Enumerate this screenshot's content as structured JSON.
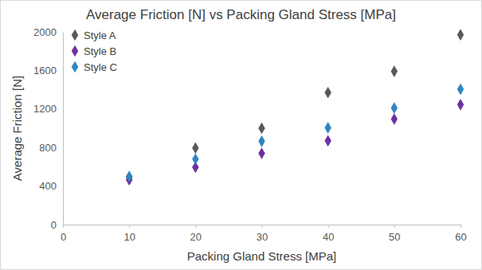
{
  "chart_data": {
    "type": "scatter",
    "title": "Average Friction [N] vs Packing Gland Stress [MPa]",
    "x_label": "Packing Gland Stress [MPa]",
    "y_label": "Average Friction [N]",
    "x": [
      10,
      20,
      30,
      40,
      50,
      60
    ],
    "series": [
      {
        "name": "Style A",
        "color": "#595959",
        "marker": "diamond",
        "values": [
          490,
          795,
          1000,
          1370,
          1590,
          1970
        ]
      },
      {
        "name": "Style B",
        "color": "#7030a0",
        "marker": "diamond",
        "values": [
          465,
          595,
          740,
          870,
          1095,
          1245
        ]
      },
      {
        "name": "Style C",
        "color": "#2e86c1",
        "marker": "diamond",
        "values": [
          500,
          680,
          865,
          1005,
          1210,
          1405
        ]
      }
    ],
    "xlim": [
      0,
      60
    ],
    "xticks": [
      0,
      10,
      20,
      30,
      40,
      50,
      60
    ],
    "ylim": [
      0,
      2000
    ],
    "yticks": [
      0,
      400,
      800,
      1200,
      1600,
      2000
    ],
    "grid": false,
    "legend": "upper left"
  }
}
